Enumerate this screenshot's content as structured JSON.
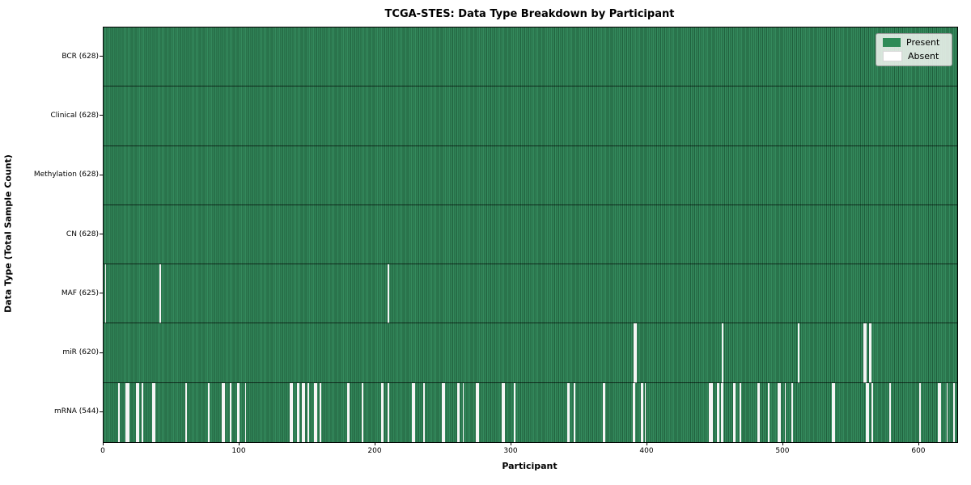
{
  "title": "TCGA-STES: Data Type Breakdown by Participant",
  "chart_data": {
    "type": "heatmap",
    "title": "TCGA-STES: Data Type Breakdown by Participant",
    "xlabel": "Participant",
    "ylabel": "Data Type (Total Sample Count)",
    "x_range": [
      0,
      628
    ],
    "x_ticks": [
      0,
      100,
      200,
      300,
      400,
      500,
      600
    ],
    "total_participants": 628,
    "grid": false,
    "legend_position": "upper-right",
    "legend": [
      {
        "label": "Present",
        "color": "#2e8b57"
      },
      {
        "label": "Absent",
        "color": "#ffffff"
      }
    ],
    "colors": {
      "present_fill": "#348a5d",
      "present_edge": "#1f5f3c",
      "absent_fill": "#f5f5f5",
      "row_separator": "#000000"
    },
    "rows": [
      {
        "data_type": "BCR",
        "label": "BCR (628)",
        "present_count": 628,
        "absent_count": 0,
        "absent_participants": []
      },
      {
        "data_type": "Clinical",
        "label": "Clinical (628)",
        "present_count": 628,
        "absent_count": 0,
        "absent_participants": []
      },
      {
        "data_type": "Methylation",
        "label": "Methylation (628)",
        "present_count": 628,
        "absent_count": 0,
        "absent_participants": []
      },
      {
        "data_type": "CN",
        "label": "CN (628)",
        "present_count": 628,
        "absent_count": 0,
        "absent_participants": []
      },
      {
        "data_type": "MAF",
        "label": "MAF (625)",
        "present_count": 625,
        "absent_count": 3,
        "absent_participants": [
          1,
          41,
          209
        ]
      },
      {
        "data_type": "miR",
        "label": "miR (620)",
        "present_count": 620,
        "absent_count": 8,
        "absent_participants": [
          390,
          391,
          455,
          511,
          559,
          560,
          563,
          564
        ]
      },
      {
        "data_type": "mRNA",
        "label": "mRNA (544)",
        "present_count": 544,
        "absent_count": 84,
        "absent_participants": [
          11,
          16,
          17,
          18,
          24,
          25,
          28,
          36,
          37,
          60,
          77,
          87,
          88,
          93,
          98,
          99,
          104,
          137,
          138,
          142,
          143,
          146,
          147,
          150,
          155,
          156,
          159,
          179,
          180,
          190,
          204,
          205,
          209,
          227,
          228,
          235,
          249,
          250,
          260,
          261,
          264,
          274,
          275,
          293,
          294,
          302,
          341,
          342,
          346,
          367,
          368,
          389,
          390,
          395,
          396,
          398,
          445,
          446,
          447,
          451,
          452,
          454,
          455,
          463,
          464,
          468,
          481,
          482,
          489,
          496,
          497,
          501,
          506,
          536,
          537,
          561,
          562,
          565,
          578,
          600,
          614,
          615,
          620,
          625
        ]
      }
    ]
  }
}
